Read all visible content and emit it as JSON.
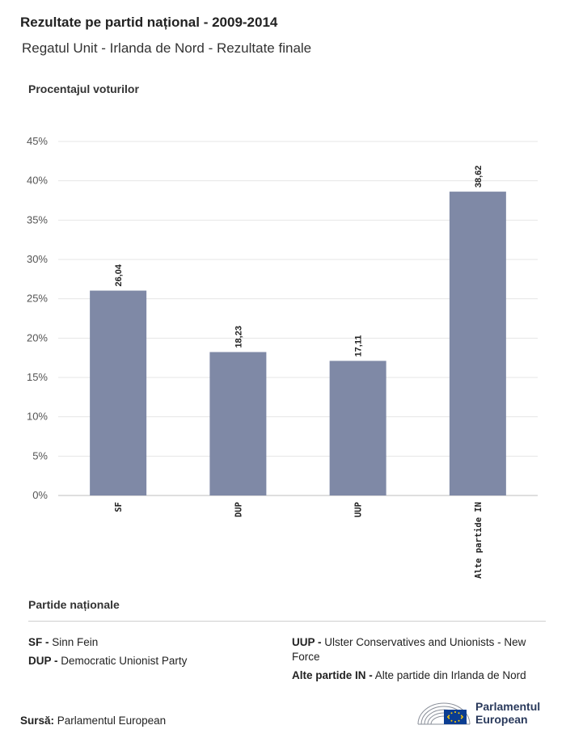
{
  "header": {
    "title": "Rezultate pe partid național - 2009-2014",
    "subtitle": "Regatul Unit - Irlanda de Nord - Rezultate finale"
  },
  "chart_data": {
    "type": "bar",
    "ylabel": "Procentajul voturilor",
    "categories": [
      "SF",
      "DUP",
      "UUP",
      "Alte partide IN"
    ],
    "values": [
      26.04,
      18.23,
      17.11,
      38.62
    ],
    "value_labels": [
      "26,04",
      "18,23",
      "17,11",
      "38,62"
    ],
    "yticks": [
      "0%",
      "5%",
      "10%",
      "15%",
      "20%",
      "25%",
      "30%",
      "35%",
      "40%",
      "45%"
    ],
    "ylim": [
      0,
      45
    ],
    "grid": true,
    "bar_color": "#7f89a6"
  },
  "legend": {
    "title": "Partide naționale",
    "left": [
      {
        "abbr": "SF -",
        "name": "Sinn Fein"
      },
      {
        "abbr": "DUP -",
        "name": "Democratic Unionist Party"
      }
    ],
    "right": [
      {
        "abbr": "UUP -",
        "name": "Ulster Conservatives and Unionists - New Force"
      },
      {
        "abbr": "Alte partide IN -",
        "name": "Alte partide din Irlanda de Nord"
      }
    ]
  },
  "footer": {
    "source_label": "Sursă:",
    "source_value": "Parlamentul European",
    "logo_line1": "Parlamentul",
    "logo_line2": "European"
  },
  "colors": {
    "bar": "#7f89a6",
    "grid": "#e6e6e6",
    "logo_blue": "#0b3d91",
    "logo_gold": "#ffcc00"
  }
}
